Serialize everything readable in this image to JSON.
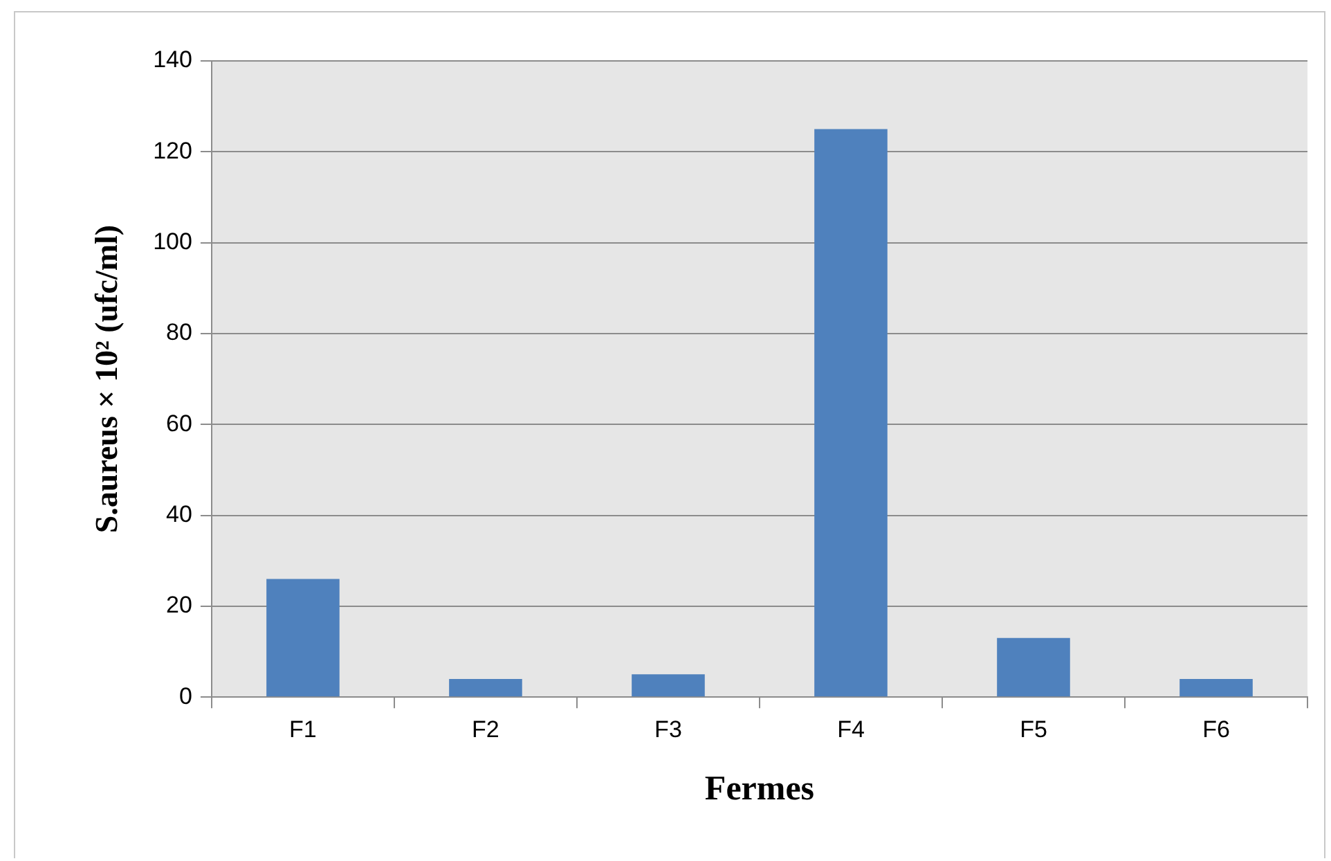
{
  "chart_data": {
    "type": "bar",
    "xlabel": "Fermes",
    "ylabel": "S.aureus × 10² (ufc/ml)",
    "categories": [
      "F1",
      "F2",
      "F3",
      "F4",
      "F5",
      "F6"
    ],
    "values": [
      26,
      4,
      5,
      125,
      13,
      4
    ],
    "color": "#4f81bd",
    "ylim": [
      0,
      140
    ],
    "yticks": [
      0,
      20,
      40,
      60,
      80,
      100,
      120,
      140
    ],
    "grid": "y"
  }
}
